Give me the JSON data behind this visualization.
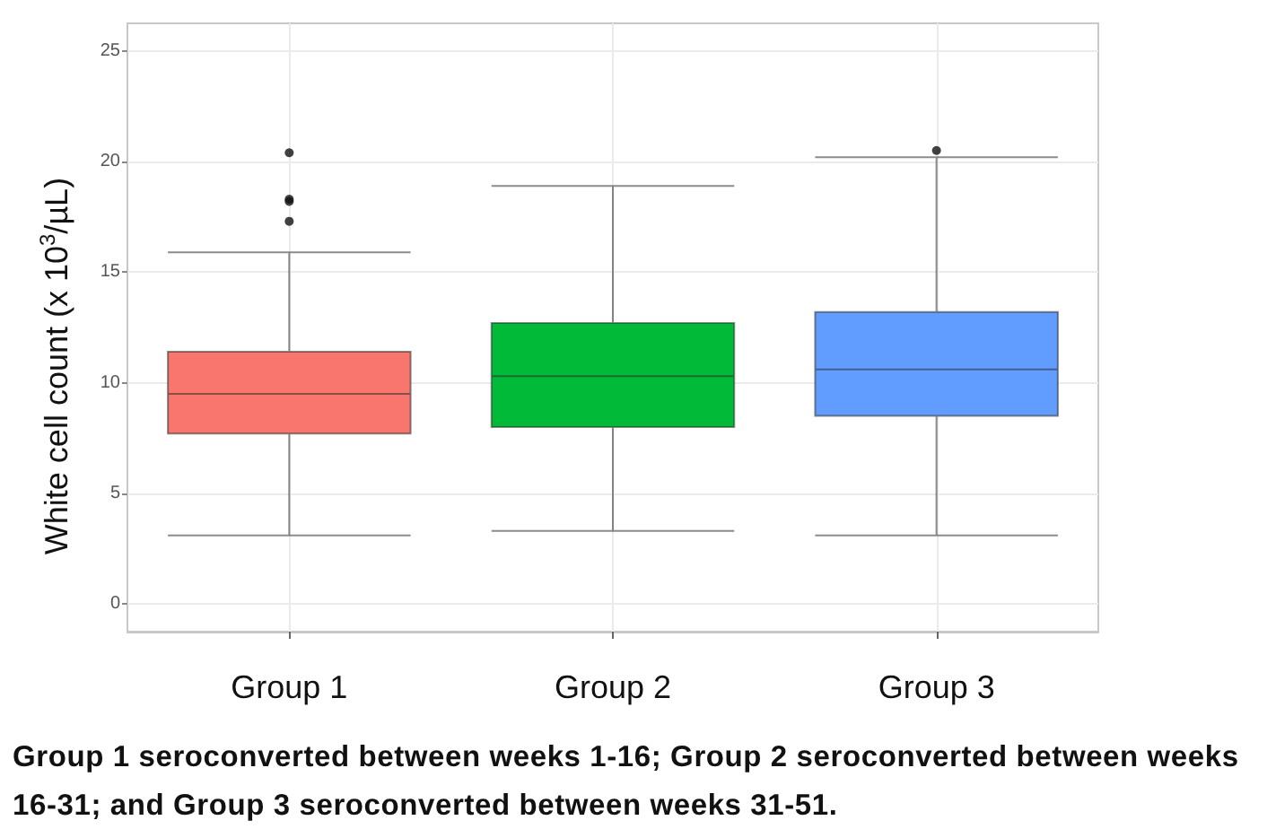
{
  "chart_data": {
    "type": "box",
    "ylabel": "White cell count (x 10$^{3}$/µL)",
    "categories": [
      "Group 1",
      "Group 2",
      "Group 3"
    ],
    "boxes": [
      {
        "low": 3.1,
        "q1": 7.7,
        "median": 9.5,
        "q3": 11.4,
        "high": 15.9,
        "outliers": [
          17.3,
          18.2,
          18.3,
          20.4
        ]
      },
      {
        "low": 3.3,
        "q1": 8.0,
        "median": 10.3,
        "q3": 12.7,
        "high": 18.9
      },
      {
        "low": 3.1,
        "q1": 8.5,
        "median": 10.6,
        "q3": 13.2,
        "high": 20.2,
        "outliers": [
          20.5
        ]
      }
    ],
    "colors": [
      "#f8766d",
      "#00ba38",
      "#619cff"
    ],
    "ylim": [
      -1.25,
      26.25
    ],
    "yticks": [
      0,
      5,
      10,
      15,
      20,
      25
    ],
    "grid": true,
    "annotations": [
      "Group 1 seroconverted between weeks 1-16; Group 2 seroconverted between weeks 16-31; and Group 3 seroconverted between weeks 31-51."
    ]
  }
}
